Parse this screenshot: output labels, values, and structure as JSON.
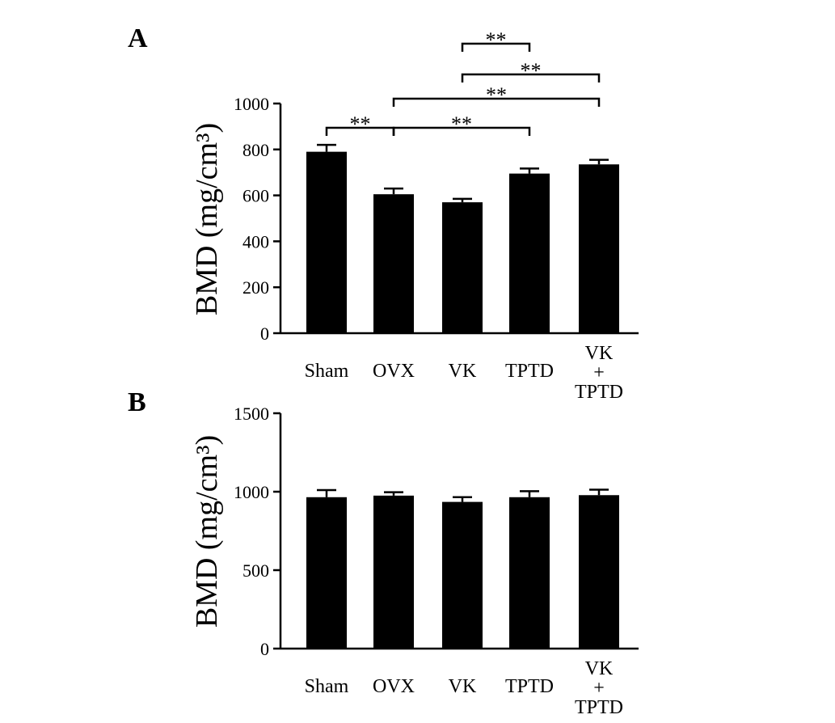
{
  "charts": [
    {
      "panel": "A",
      "chart_data": {
        "type": "bar",
        "categories": [
          [
            "Sham"
          ],
          [
            "OVX"
          ],
          [
            "VK"
          ],
          [
            "TPTD"
          ],
          [
            "VK",
            "+",
            "TPTD"
          ]
        ],
        "values": [
          790,
          605,
          570,
          695,
          735
        ],
        "errors": [
          30,
          25,
          15,
          22,
          20
        ],
        "ylabel": "BMD (mg/cm³)",
        "ylim": [
          0,
          1000
        ],
        "yticks": [
          0,
          200,
          400,
          600,
          800,
          1000
        ],
        "grid": false,
        "legend": "none",
        "bar_color": "#000000",
        "annotations": [
          {
            "from": 0,
            "to": 1,
            "label": "**"
          },
          {
            "from": 1,
            "to": 3,
            "label": "**"
          },
          {
            "from": 1,
            "to": 4,
            "label": "**"
          },
          {
            "from": 2,
            "to": 4,
            "label": "**"
          },
          {
            "from": 2,
            "to": 3,
            "label": "**"
          }
        ]
      }
    },
    {
      "panel": "B",
      "chart_data": {
        "type": "bar",
        "categories": [
          [
            "Sham"
          ],
          [
            "OVX"
          ],
          [
            "VK"
          ],
          [
            "TPTD"
          ],
          [
            "VK",
            "+",
            "TPTD"
          ]
        ],
        "values": [
          965,
          975,
          935,
          965,
          978
        ],
        "errors": [
          45,
          22,
          30,
          38,
          35
        ],
        "ylabel": "BMD (mg/cm³)",
        "ylim": [
          0,
          1500
        ],
        "yticks": [
          0,
          500,
          1000,
          1500
        ],
        "grid": false,
        "legend": "none",
        "bar_color": "#000000",
        "annotations": []
      }
    }
  ]
}
